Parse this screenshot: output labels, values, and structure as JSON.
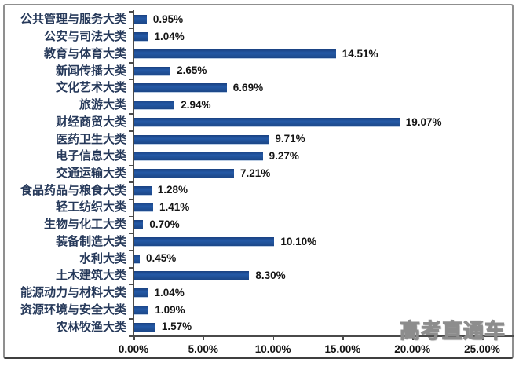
{
  "chart_data": {
    "type": "bar",
    "orientation": "horizontal",
    "title": "",
    "xlabel": "",
    "ylabel": "",
    "categories": [
      "公共管理与服务大类",
      "公安与司法大类",
      "教育与体育大类",
      "新闻传播大类",
      "文化艺术大类",
      "旅游大类",
      "财经商贸大类",
      "医药卫生大类",
      "电子信息大类",
      "交通运输大类",
      "食品药品与粮食大类",
      "轻工纺织大类",
      "生物与化工大类",
      "装备制造大类",
      "水利大类",
      "土木建筑大类",
      "能源动力与材料大类",
      "资源环境与安全大类",
      "农林牧渔大类"
    ],
    "values": [
      0.95,
      1.04,
      14.51,
      2.65,
      6.69,
      2.94,
      19.07,
      9.71,
      9.27,
      7.21,
      1.28,
      1.41,
      0.7,
      10.1,
      0.45,
      8.3,
      1.04,
      1.09,
      1.57
    ],
    "data_labels": [
      "0.95%",
      "1.04%",
      "14.51%",
      "2.65%",
      "6.69%",
      "2.94%",
      "19.07%",
      "9.71%",
      "9.27%",
      "7.21%",
      "1.28%",
      "1.41%",
      "0.70%",
      "10.10%",
      "0.45%",
      "8.30%",
      "1.04%",
      "1.09%",
      "1.57%"
    ],
    "x_ticks": [
      "0.00%",
      "5.00%",
      "10.00%",
      "15.00%",
      "20.00%",
      "25.00%"
    ],
    "x_tick_values": [
      0,
      5,
      10,
      15,
      20,
      25
    ],
    "xlim": [
      0,
      25
    ],
    "grid": false,
    "legend": false,
    "bar_color": "#1c4788"
  },
  "watermark": {
    "text": "高考直通车"
  },
  "colors": {
    "bar": "#1c4788",
    "category_label": "#26395a",
    "value_label": "#151515",
    "axis": "#4a4a4a",
    "frame_border": "#8f8f8f",
    "frame_bottom": "#3f3f3f",
    "background": "#ffffff"
  }
}
